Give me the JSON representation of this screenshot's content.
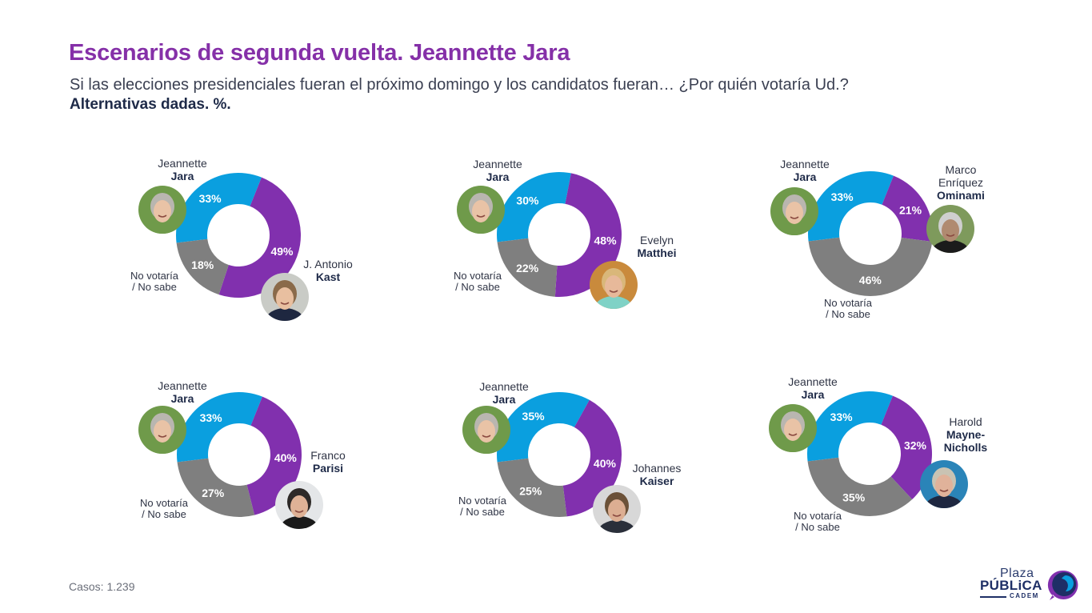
{
  "header": {
    "title": "Escenarios de segunda vuelta. Jeannette Jara",
    "subtitle": "Si las elecciones presidenciales fueran el próximo domingo y los candidatos fueran… ¿Por quién votaría Ud.?",
    "note": "Alternativas dadas. %."
  },
  "colors": {
    "jara": "#0A9FDF",
    "opponent": "#8130AE",
    "no_vote": "#7F7F7F"
  },
  "chart_data": [
    {
      "type": "pie",
      "donut": true,
      "title": "Jeannette Jara vs J. Antonio Kast",
      "categories": [
        "Jeannette Jara",
        "J. Antonio Kast",
        "No votaría / No sabe"
      ],
      "values": [
        33,
        49,
        18
      ],
      "labels": [
        "33%",
        "49%",
        "18%"
      ]
    },
    {
      "type": "pie",
      "donut": true,
      "title": "Jeannette Jara vs Evelyn Matthei",
      "categories": [
        "Jeannette Jara",
        "Evelyn Matthei",
        "No votaría / No sabe"
      ],
      "values": [
        30,
        48,
        22
      ],
      "labels": [
        "30%",
        "48%",
        "22%"
      ]
    },
    {
      "type": "pie",
      "donut": true,
      "title": "Jeannette Jara vs Marco Enríquez Ominami",
      "categories": [
        "Jeannette Jara",
        "Marco Enríquez Ominami",
        "No votaría / No sabe"
      ],
      "values": [
        33,
        21,
        46
      ],
      "labels": [
        "33%",
        "21%",
        "46%"
      ]
    },
    {
      "type": "pie",
      "donut": true,
      "title": "Jeannette Jara vs Franco Parisi",
      "categories": [
        "Jeannette Jara",
        "Franco Parisi",
        "No votaría / No sabe"
      ],
      "values": [
        33,
        40,
        27
      ],
      "labels": [
        "33%",
        "40%",
        "27%"
      ]
    },
    {
      "type": "pie",
      "donut": true,
      "title": "Jeannette Jara vs Johannes Kaiser",
      "categories": [
        "Jeannette Jara",
        "Johannes Kaiser",
        "No votaría / No sabe"
      ],
      "values": [
        35,
        40,
        25
      ],
      "labels": [
        "35%",
        "40%",
        "25%"
      ]
    },
    {
      "type": "pie",
      "donut": true,
      "title": "Jeannette Jara vs Harold Mayne-Nicholls",
      "categories": [
        "Jeannette Jara",
        "Harold Mayne-Nicholls",
        "No votaría / No sabe"
      ],
      "values": [
        33,
        32,
        35
      ],
      "labels": [
        "33%",
        "32%",
        "35%"
      ]
    }
  ],
  "scenarios": [
    {
      "jara_first": "Jeannette",
      "jara_last": "Jara",
      "opp_lines": [
        "J. Antonio"
      ],
      "opp_bold": [
        "Kast"
      ],
      "no_vote": [
        "No votaría",
        "/ No sabe"
      ]
    },
    {
      "jara_first": "Jeannette",
      "jara_last": "Jara",
      "opp_lines": [
        "Evelyn"
      ],
      "opp_bold": [
        "Matthei"
      ],
      "no_vote": [
        "No votaría",
        "/ No sabe"
      ]
    },
    {
      "jara_first": "Jeannette",
      "jara_last": "Jara",
      "opp_lines": [
        "Marco",
        "Enríquez"
      ],
      "opp_bold": [
        "Ominami"
      ],
      "no_vote": [
        "No votaría",
        "/ No sabe"
      ]
    },
    {
      "jara_first": "Jeannette",
      "jara_last": "Jara",
      "opp_lines": [
        "Franco"
      ],
      "opp_bold": [
        "Parisi"
      ],
      "no_vote": [
        "No votaría",
        "/ No sabe"
      ]
    },
    {
      "jara_first": "Jeannette",
      "jara_last": "Jara",
      "opp_lines": [
        "Johannes"
      ],
      "opp_bold": [
        "Kaiser"
      ],
      "no_vote": [
        "No votaría",
        "/ No sabe"
      ]
    },
    {
      "jara_first": "Jeannette",
      "jara_last": "Jara",
      "opp_lines": [
        "Harold"
      ],
      "opp_bold": [
        "Mayne-",
        "Nicholls"
      ],
      "no_vote": [
        "No votaría",
        "/ No sabe"
      ]
    }
  ],
  "footer": {
    "cases": "Casos: 1.239"
  },
  "logo": {
    "line1": "Plaza",
    "line2": "PÚBLiCA",
    "line3": "CADEM"
  }
}
